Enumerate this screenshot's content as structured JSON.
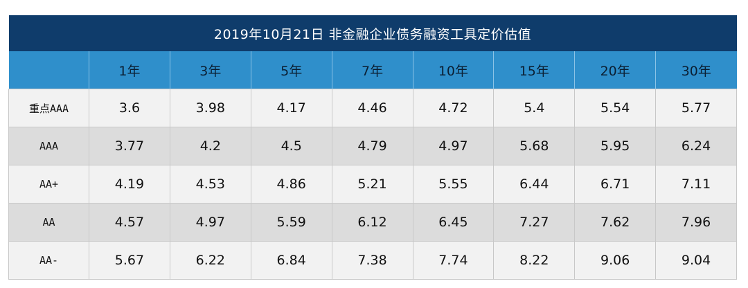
{
  "title": "2019年10月21日  非金融企业债务融资工具定价估值",
  "header": {
    "corner": "",
    "columns": [
      "1年",
      "3年",
      "5年",
      "7年",
      "10年",
      "15年",
      "20年",
      "30年"
    ]
  },
  "rows": [
    {
      "label": "重点AAA",
      "values": [
        "3.6",
        "3.98",
        "4.17",
        "4.46",
        "4.72",
        "5.4",
        "5.54",
        "5.77"
      ]
    },
    {
      "label": "AAA",
      "values": [
        "3.77",
        "4.2",
        "4.5",
        "4.79",
        "4.97",
        "5.68",
        "5.95",
        "6.24"
      ]
    },
    {
      "label": "AA+",
      "values": [
        "4.19",
        "4.53",
        "4.86",
        "5.21",
        "5.55",
        "6.44",
        "6.71",
        "7.11"
      ]
    },
    {
      "label": "AA",
      "values": [
        "4.57",
        "4.97",
        "5.59",
        "6.12",
        "6.45",
        "7.27",
        "7.62",
        "7.96"
      ]
    },
    {
      "label": "AA-",
      "values": [
        "5.67",
        "6.22",
        "6.84",
        "7.38",
        "7.74",
        "8.22",
        "9.06",
        "9.04"
      ]
    }
  ],
  "colors": {
    "title_bg": "#0f3c6b",
    "header_bg": "#2f8fcb",
    "row_light": "#f2f2f2",
    "row_dark": "#dcdcdc"
  }
}
